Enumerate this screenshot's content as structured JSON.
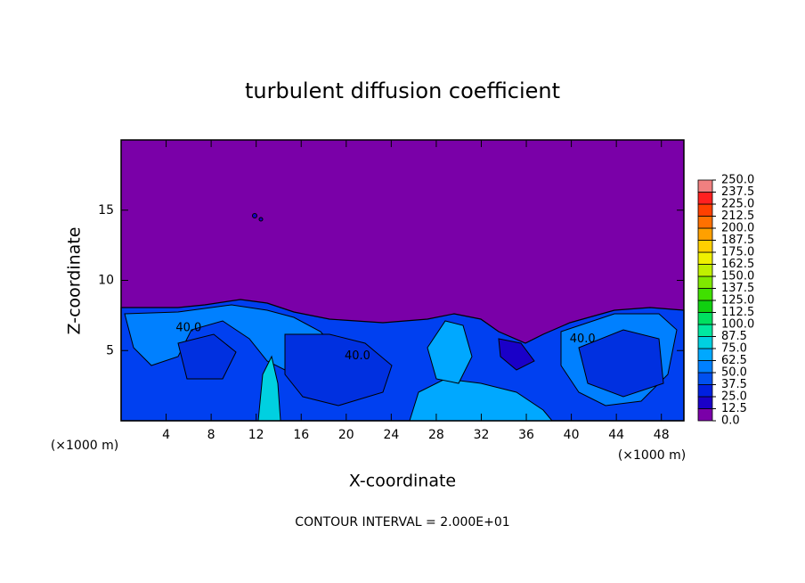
{
  "chart_data": {
    "type": "contour",
    "title": "turbulent diffusion coefficient",
    "xlabel": "X-coordinate",
    "ylabel": "Z-coordinate",
    "x_unit_left": "(×1000 m)",
    "x_unit_right": "(×1000 m)",
    "footer": "CONTOUR INTERVAL = 2.000E+01",
    "xlim": [
      0,
      50
    ],
    "ylim": [
      0,
      20
    ],
    "xticks": [
      4,
      8,
      12,
      16,
      20,
      24,
      28,
      32,
      36,
      40,
      44,
      48
    ],
    "yticks": [
      5,
      10,
      15
    ],
    "contour_labels": [
      {
        "text": "40.0",
        "x": 21,
        "y": 4.6
      },
      {
        "text": "40.0",
        "x": 41,
        "y": 5.8
      },
      {
        "text": "40.0",
        "x": 6,
        "y": 6.6
      }
    ],
    "colorbar": {
      "levels": [
        {
          "value": 0,
          "label": "0.0"
        },
        {
          "value": 12.5,
          "label": "12.5"
        },
        {
          "value": 25,
          "label": "25.0"
        },
        {
          "value": 37.5,
          "label": "37.5"
        },
        {
          "value": 50,
          "label": "50.0"
        },
        {
          "value": 62.5,
          "label": "62.5"
        },
        {
          "value": 75,
          "label": "75.0"
        },
        {
          "value": 87.5,
          "label": "87.5"
        },
        {
          "value": 100,
          "label": "100.0"
        },
        {
          "value": 112.5,
          "label": "112.5"
        },
        {
          "value": 125,
          "label": "125.0"
        },
        {
          "value": 137.5,
          "label": "137.5"
        },
        {
          "value": 150,
          "label": "150.0"
        },
        {
          "value": 162.5,
          "label": "162.5"
        },
        {
          "value": 175,
          "label": "175.0"
        },
        {
          "value": 187.5,
          "label": "187.5"
        },
        {
          "value": 200,
          "label": "200.0"
        },
        {
          "value": 212.5,
          "label": "212.5"
        },
        {
          "value": 225,
          "label": "225.0"
        },
        {
          "value": 237.5,
          "label": "237.5"
        },
        {
          "value": 250,
          "label": "250.0"
        }
      ],
      "colors": [
        "#7a00a8",
        "#1a00c8",
        "#0020e0",
        "#0050f0",
        "#0080ff",
        "#00a8ff",
        "#00d0e0",
        "#00e8a0",
        "#00e060",
        "#10d010",
        "#40e000",
        "#80e800",
        "#c0f000",
        "#f0f000",
        "#ffd000",
        "#ffa000",
        "#ff7000",
        "#ff4000",
        "#ff2020",
        "#f08080"
      ]
    }
  }
}
